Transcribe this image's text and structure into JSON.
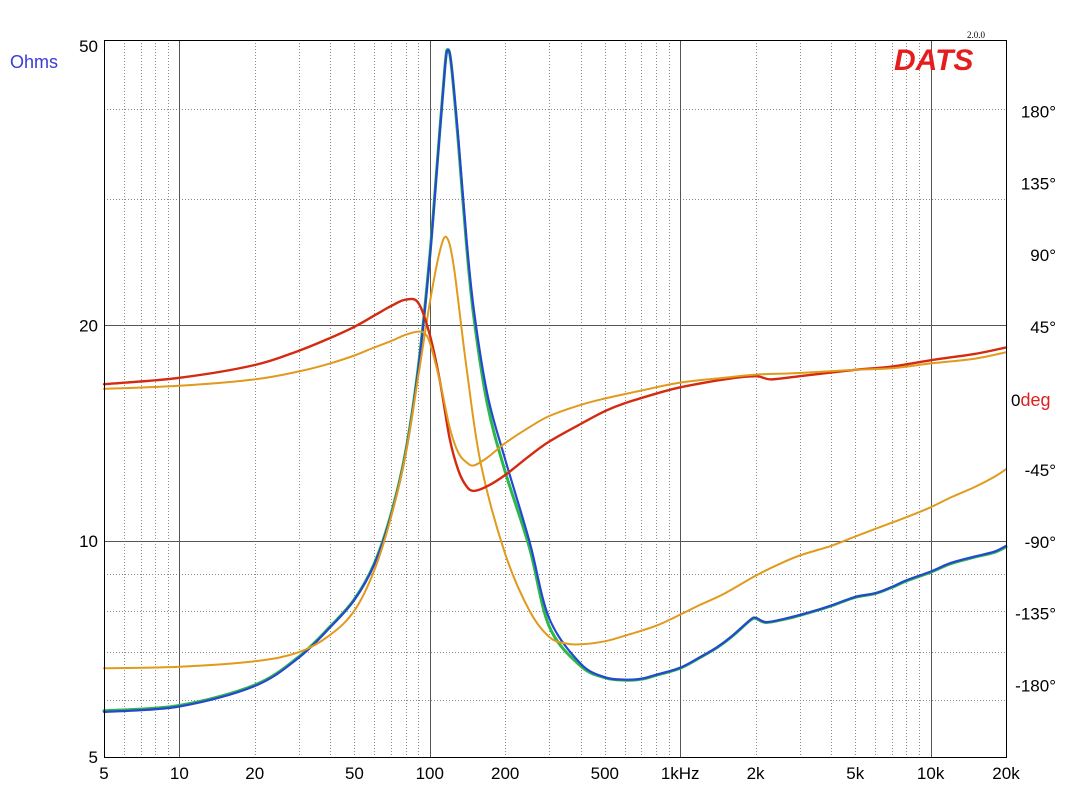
{
  "brand": {
    "logo_text": "DATS",
    "version": "2.0.0"
  },
  "colors": {
    "impedance_primary": "#2448d0",
    "impedance_secondary": "#2db84a",
    "phase_primary": "#d42a10",
    "reference": "#e09a1c",
    "left_axis_label": "#3b3bd6",
    "right_axis_label": "#e02020",
    "logo": "#e41e1e"
  },
  "chart_data": {
    "type": "line",
    "title": "",
    "xlabel": "",
    "x_scale": "log",
    "xlim": [
      5,
      20000
    ],
    "x_ticks": [
      5,
      10,
      20,
      50,
      100,
      200,
      500,
      1000,
      2000,
      5000,
      10000,
      20000
    ],
    "x_tick_labels": [
      "5",
      "10",
      "20",
      "50",
      "100",
      "200",
      "500",
      "1kHz",
      "2k",
      "5k",
      "10k",
      "20k"
    ],
    "y_left": {
      "unit_label": "Ohms",
      "scale": "log",
      "lim": [
        5,
        50
      ],
      "ticks": [
        5,
        10,
        20,
        50
      ],
      "tick_labels": [
        "5",
        "10",
        "20",
        "50"
      ]
    },
    "y_right": {
      "unit_prefix": "0",
      "unit_label": "deg",
      "scale": "linear",
      "lim": [
        -225,
        225
      ],
      "ticks": [
        180,
        135,
        90,
        45,
        -45,
        -90,
        -135,
        -180
      ],
      "tick_labels": [
        "180°",
        "135°",
        "90°",
        "45°",
        "-45°",
        "-90°",
        "-135°",
        "-180°"
      ]
    },
    "grid": true,
    "series": [
      {
        "axis": "left",
        "color": "#2db84a",
        "points": [
          [
            5,
            5.8
          ],
          [
            10,
            5.9
          ],
          [
            20,
            6.3
          ],
          [
            30,
            6.9
          ],
          [
            40,
            7.6
          ],
          [
            50,
            8.3
          ],
          [
            60,
            9.3
          ],
          [
            70,
            10.9
          ],
          [
            80,
            13.3
          ],
          [
            90,
            17.5
          ],
          [
            100,
            25
          ],
          [
            108,
            35
          ],
          [
            115,
            46
          ],
          [
            118,
            48.5
          ],
          [
            122,
            46
          ],
          [
            130,
            36
          ],
          [
            140,
            26
          ],
          [
            150,
            20.5
          ],
          [
            170,
            15.5
          ],
          [
            200,
            12.5
          ],
          [
            250,
            9.8
          ],
          [
            300,
            7.6
          ],
          [
            400,
            6.7
          ],
          [
            500,
            6.45
          ],
          [
            600,
            6.4
          ],
          [
            700,
            6.42
          ],
          [
            800,
            6.5
          ],
          [
            1000,
            6.65
          ],
          [
            1200,
            6.88
          ],
          [
            1400,
            7.1
          ],
          [
            1600,
            7.35
          ],
          [
            1900,
            7.75
          ],
          [
            2000,
            7.8
          ],
          [
            2200,
            7.7
          ],
          [
            2600,
            7.78
          ],
          [
            3000,
            7.88
          ],
          [
            3500,
            8.0
          ],
          [
            4000,
            8.12
          ],
          [
            5000,
            8.35
          ],
          [
            6000,
            8.45
          ],
          [
            7000,
            8.62
          ],
          [
            8000,
            8.8
          ],
          [
            10000,
            9.05
          ],
          [
            12000,
            9.3
          ],
          [
            15000,
            9.5
          ],
          [
            18000,
            9.65
          ],
          [
            20000,
            9.82
          ]
        ]
      },
      {
        "axis": "left",
        "color": "#2448d0",
        "points": [
          [
            5,
            5.78
          ],
          [
            10,
            5.88
          ],
          [
            20,
            6.28
          ],
          [
            30,
            6.88
          ],
          [
            40,
            7.58
          ],
          [
            50,
            8.28
          ],
          [
            60,
            9.28
          ],
          [
            70,
            10.85
          ],
          [
            80,
            13.25
          ],
          [
            90,
            17.4
          ],
          [
            100,
            24.8
          ],
          [
            108,
            34.8
          ],
          [
            115,
            45.8
          ],
          [
            118,
            48.4
          ],
          [
            122,
            46.2
          ],
          [
            130,
            36.5
          ],
          [
            140,
            26.5
          ],
          [
            150,
            21
          ],
          [
            170,
            16
          ],
          [
            200,
            13
          ],
          [
            250,
            10
          ],
          [
            300,
            7.8
          ],
          [
            400,
            6.75
          ],
          [
            500,
            6.46
          ],
          [
            600,
            6.41
          ],
          [
            700,
            6.43
          ],
          [
            800,
            6.51
          ],
          [
            1000,
            6.66
          ],
          [
            1200,
            6.89
          ],
          [
            1400,
            7.11
          ],
          [
            1600,
            7.36
          ],
          [
            1900,
            7.76
          ],
          [
            2000,
            7.82
          ],
          [
            2200,
            7.71
          ],
          [
            2600,
            7.79
          ],
          [
            3000,
            7.89
          ],
          [
            3500,
            8.01
          ],
          [
            4000,
            8.13
          ],
          [
            5000,
            8.36
          ],
          [
            6000,
            8.46
          ],
          [
            7000,
            8.63
          ],
          [
            8000,
            8.82
          ],
          [
            10000,
            9.07
          ],
          [
            12000,
            9.32
          ],
          [
            15000,
            9.52
          ],
          [
            18000,
            9.67
          ],
          [
            20000,
            9.85
          ]
        ]
      },
      {
        "axis": "left",
        "color": "#e09a1c",
        "points": [
          [
            5,
            6.65
          ],
          [
            10,
            6.68
          ],
          [
            20,
            6.8
          ],
          [
            30,
            7.0
          ],
          [
            40,
            7.4
          ],
          [
            50,
            8.0
          ],
          [
            60,
            9.1
          ],
          [
            70,
            10.8
          ],
          [
            80,
            13.2
          ],
          [
            90,
            17.0
          ],
          [
            100,
            21.5
          ],
          [
            110,
            25.5
          ],
          [
            117,
            26.5
          ],
          [
            125,
            24
          ],
          [
            140,
            17.5
          ],
          [
            160,
            12.8
          ],
          [
            200,
            9.6
          ],
          [
            250,
            8.0
          ],
          [
            300,
            7.35
          ],
          [
            350,
            7.2
          ],
          [
            400,
            7.18
          ],
          [
            500,
            7.25
          ],
          [
            600,
            7.38
          ],
          [
            800,
            7.62
          ],
          [
            1000,
            7.9
          ],
          [
            1200,
            8.15
          ],
          [
            1500,
            8.45
          ],
          [
            2000,
            8.95
          ],
          [
            2500,
            9.3
          ],
          [
            3000,
            9.55
          ],
          [
            4000,
            9.85
          ],
          [
            5000,
            10.15
          ],
          [
            6000,
            10.4
          ],
          [
            8000,
            10.8
          ],
          [
            10000,
            11.15
          ],
          [
            12000,
            11.5
          ],
          [
            15000,
            11.9
          ],
          [
            18000,
            12.3
          ],
          [
            20000,
            12.6
          ]
        ]
      },
      {
        "axis": "right",
        "color": "#d42a10",
        "points": [
          [
            5,
            9
          ],
          [
            10,
            13
          ],
          [
            20,
            21
          ],
          [
            30,
            30
          ],
          [
            40,
            38
          ],
          [
            50,
            45
          ],
          [
            60,
            52
          ],
          [
            70,
            58
          ],
          [
            80,
            62
          ],
          [
            90,
            60
          ],
          [
            100,
            40
          ],
          [
            110,
            10
          ],
          [
            120,
            -25
          ],
          [
            130,
            -45
          ],
          [
            140,
            -55
          ],
          [
            150,
            -58
          ],
          [
            170,
            -55
          ],
          [
            200,
            -48
          ],
          [
            250,
            -36
          ],
          [
            300,
            -27
          ],
          [
            400,
            -16
          ],
          [
            500,
            -8
          ],
          [
            600,
            -3
          ],
          [
            800,
            3
          ],
          [
            1000,
            7
          ],
          [
            1500,
            12
          ],
          [
            2000,
            14
          ],
          [
            2300,
            12
          ],
          [
            3000,
            14
          ],
          [
            5000,
            18
          ],
          [
            7000,
            20
          ],
          [
            10000,
            24
          ],
          [
            15000,
            28
          ],
          [
            20000,
            32
          ]
        ]
      },
      {
        "axis": "right",
        "color": "#e09a1c",
        "points": [
          [
            5,
            6
          ],
          [
            10,
            8
          ],
          [
            20,
            12
          ],
          [
            30,
            17
          ],
          [
            40,
            22
          ],
          [
            50,
            27
          ],
          [
            60,
            32
          ],
          [
            70,
            36
          ],
          [
            80,
            40
          ],
          [
            90,
            42
          ],
          [
            95,
            41
          ],
          [
            100,
            35
          ],
          [
            110,
            10
          ],
          [
            120,
            -18
          ],
          [
            130,
            -34
          ],
          [
            140,
            -40
          ],
          [
            150,
            -42
          ],
          [
            170,
            -37
          ],
          [
            200,
            -28
          ],
          [
            250,
            -18
          ],
          [
            300,
            -11
          ],
          [
            400,
            -4
          ],
          [
            500,
            0
          ],
          [
            700,
            5
          ],
          [
            1000,
            10
          ],
          [
            1500,
            13
          ],
          [
            2000,
            15
          ],
          [
            3000,
            16
          ],
          [
            5000,
            18
          ],
          [
            7000,
            19
          ],
          [
            10000,
            22
          ],
          [
            15000,
            25
          ],
          [
            20000,
            29
          ]
        ]
      }
    ]
  }
}
